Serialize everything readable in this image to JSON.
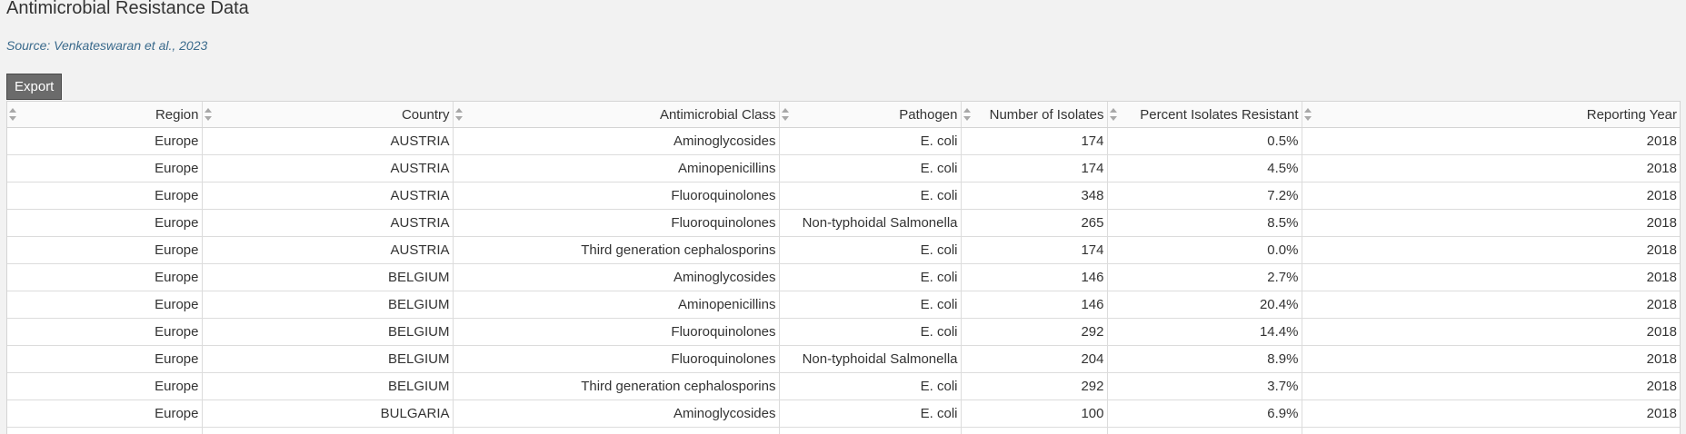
{
  "page": {
    "title": "Antimicrobial Resistance Data",
    "source": "Source: Venkateswaran et al., 2023",
    "export_label": "Export"
  },
  "table": {
    "columns": [
      {
        "key": "index",
        "label": ""
      },
      {
        "key": "region",
        "label": "Region"
      },
      {
        "key": "country",
        "label": "Country"
      },
      {
        "key": "antimicrobial_class",
        "label": "Antimicrobial Class"
      },
      {
        "key": "pathogen",
        "label": "Pathogen"
      },
      {
        "key": "number_of_isolates",
        "label": "Number of Isolates"
      },
      {
        "key": "percent_resistant",
        "label": "Percent Isolates Resistant"
      },
      {
        "key": "reporting_year",
        "label": "Reporting Year"
      }
    ],
    "rows": [
      [
        "",
        "Europe",
        "AUSTRIA",
        "Aminoglycosides",
        "E. coli",
        "174",
        "0.5%",
        "2018"
      ],
      [
        "",
        "Europe",
        "AUSTRIA",
        "Aminopenicillins",
        "E. coli",
        "174",
        "4.5%",
        "2018"
      ],
      [
        "",
        "Europe",
        "AUSTRIA",
        "Fluoroquinolones",
        "E. coli",
        "348",
        "7.2%",
        "2018"
      ],
      [
        "",
        "Europe",
        "AUSTRIA",
        "Fluoroquinolones",
        "Non-typhoidal Salmonella",
        "265",
        "8.5%",
        "2018"
      ],
      [
        "",
        "Europe",
        "AUSTRIA",
        "Third generation cephalosporins",
        "E. coli",
        "174",
        "0.0%",
        "2018"
      ],
      [
        "",
        "Europe",
        "BELGIUM",
        "Aminoglycosides",
        "E. coli",
        "146",
        "2.7%",
        "2018"
      ],
      [
        "",
        "Europe",
        "BELGIUM",
        "Aminopenicillins",
        "E. coli",
        "146",
        "20.4%",
        "2018"
      ],
      [
        "",
        "Europe",
        "BELGIUM",
        "Fluoroquinolones",
        "E. coli",
        "292",
        "14.4%",
        "2018"
      ],
      [
        "",
        "Europe",
        "BELGIUM",
        "Fluoroquinolones",
        "Non-typhoidal Salmonella",
        "204",
        "8.9%",
        "2018"
      ],
      [
        "",
        "Europe",
        "BELGIUM",
        "Third generation cephalosporins",
        "E. coli",
        "292",
        "3.7%",
        "2018"
      ],
      [
        "",
        "Europe",
        "BULGARIA",
        "Aminoglycosides",
        "E. coli",
        "100",
        "6.9%",
        "2018"
      ],
      [
        "",
        "",
        "",
        "",
        "",
        "",
        "",
        ""
      ]
    ]
  },
  "icons": {
    "sort": "sort-both-icon"
  }
}
